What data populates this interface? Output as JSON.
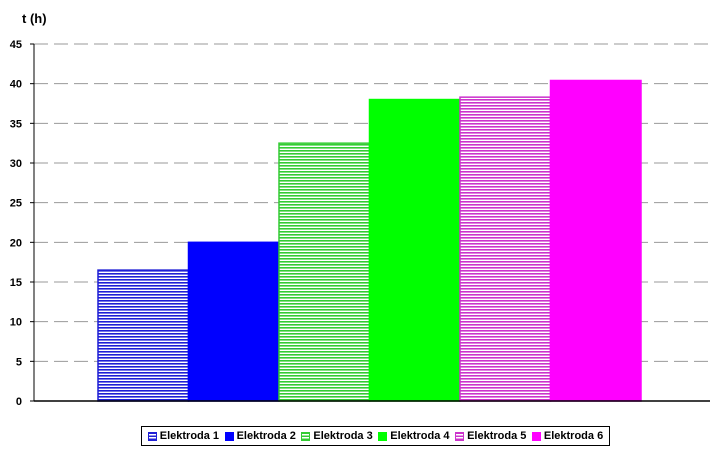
{
  "chart_data": {
    "type": "bar",
    "title": "t (h)",
    "xlabel": "",
    "ylabel": "t (h)",
    "ylim": [
      0,
      45
    ],
    "yticks": [
      0,
      5,
      10,
      15,
      20,
      25,
      30,
      35,
      40,
      45
    ],
    "grid": "horizontal dashed",
    "legend_position": "bottom",
    "series": [
      {
        "name": "Elektroda 1",
        "value": 16.5,
        "color": "#1f1fd6",
        "pattern": "striped"
      },
      {
        "name": "Elektroda 2",
        "value": 20,
        "color": "#0000ff",
        "pattern": "solid"
      },
      {
        "name": "Elektroda 3",
        "value": 32.5,
        "color": "#33cc33",
        "pattern": "striped"
      },
      {
        "name": "Elektroda 4",
        "value": 38,
        "color": "#00ff00",
        "pattern": "solid"
      },
      {
        "name": "Elektroda 5",
        "value": 38.3,
        "color": "#cc33cc",
        "pattern": "striped"
      },
      {
        "name": "Elektroda 6",
        "value": 40.4,
        "color": "#ff00ff",
        "pattern": "solid"
      }
    ]
  }
}
